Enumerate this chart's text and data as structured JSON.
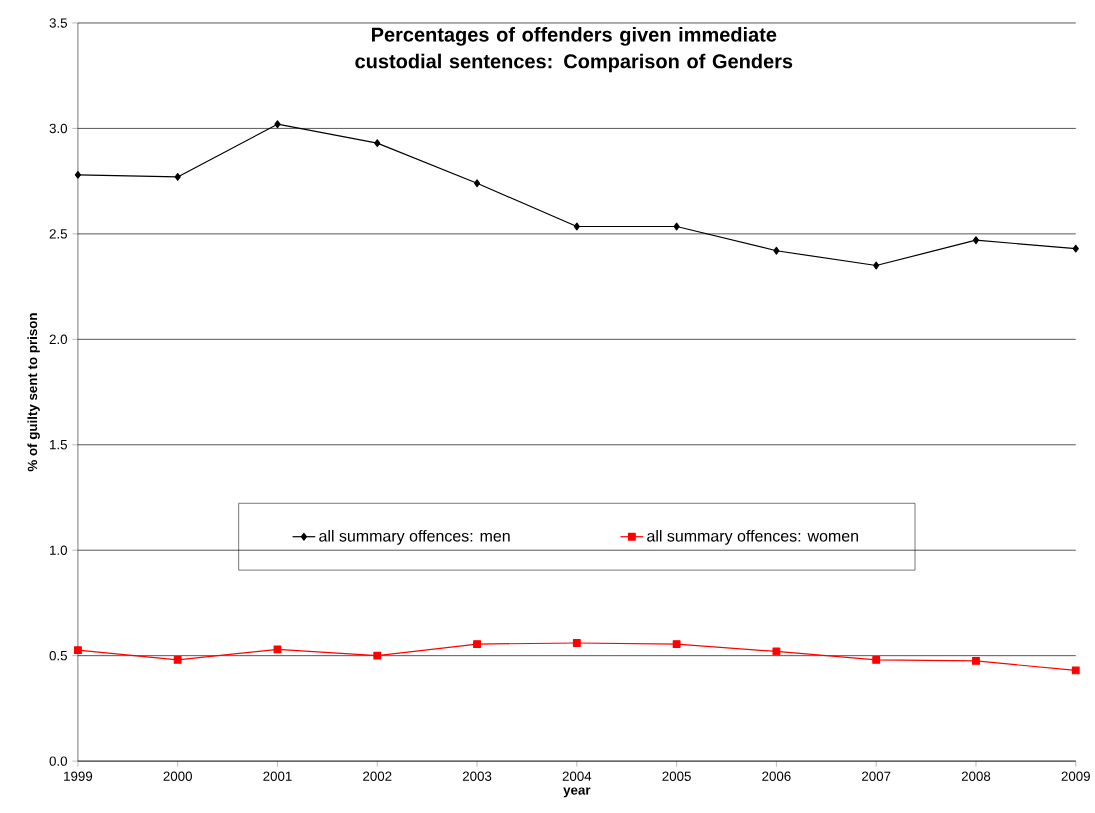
{
  "chart_data": {
    "type": "line",
    "title": "Percentages of offenders given immediate custodial sentences: Comparison of Genders",
    "xlabel": "year",
    "ylabel": "% of guilty sent to prison",
    "x": [
      1999,
      2000,
      2001,
      2002,
      2003,
      2004,
      2005,
      2006,
      2007,
      2008,
      2009
    ],
    "series": [
      {
        "name": "all summary offences: men",
        "color": "#000000",
        "marker": "diamond",
        "values": [
          2.78,
          2.77,
          3.02,
          2.93,
          2.74,
          2.535,
          2.535,
          2.42,
          2.35,
          2.47,
          2.43
        ]
      },
      {
        "name": "all summary offences: women",
        "color": "#ff0000",
        "marker": "square",
        "values": [
          0.526,
          0.48,
          0.53,
          0.5,
          0.555,
          0.56,
          0.555,
          0.52,
          0.48,
          0.475,
          0.43
        ]
      }
    ],
    "xlim": [
      1999,
      2009
    ],
    "xticks": [
      1999,
      2000,
      2001,
      2002,
      2003,
      2004,
      2005,
      2006,
      2007,
      2008,
      2009
    ],
    "ylim": [
      0,
      3.5
    ],
    "yticks": [
      {
        "value": 0,
        "label": "0.0"
      },
      {
        "value": 0.5,
        "label": "0.5"
      },
      {
        "value": 1,
        "label": "1.0"
      },
      {
        "value": 1.5,
        "label": "1.5"
      },
      {
        "value": 2,
        "label": "2.0"
      },
      {
        "value": 2.5,
        "label": "2.5"
      },
      {
        "value": 3,
        "label": "3.0"
      },
      {
        "value": 3.5,
        "label": "3.5"
      }
    ],
    "grid": "y",
    "legend": "bottom",
    "line_style": "solid"
  }
}
